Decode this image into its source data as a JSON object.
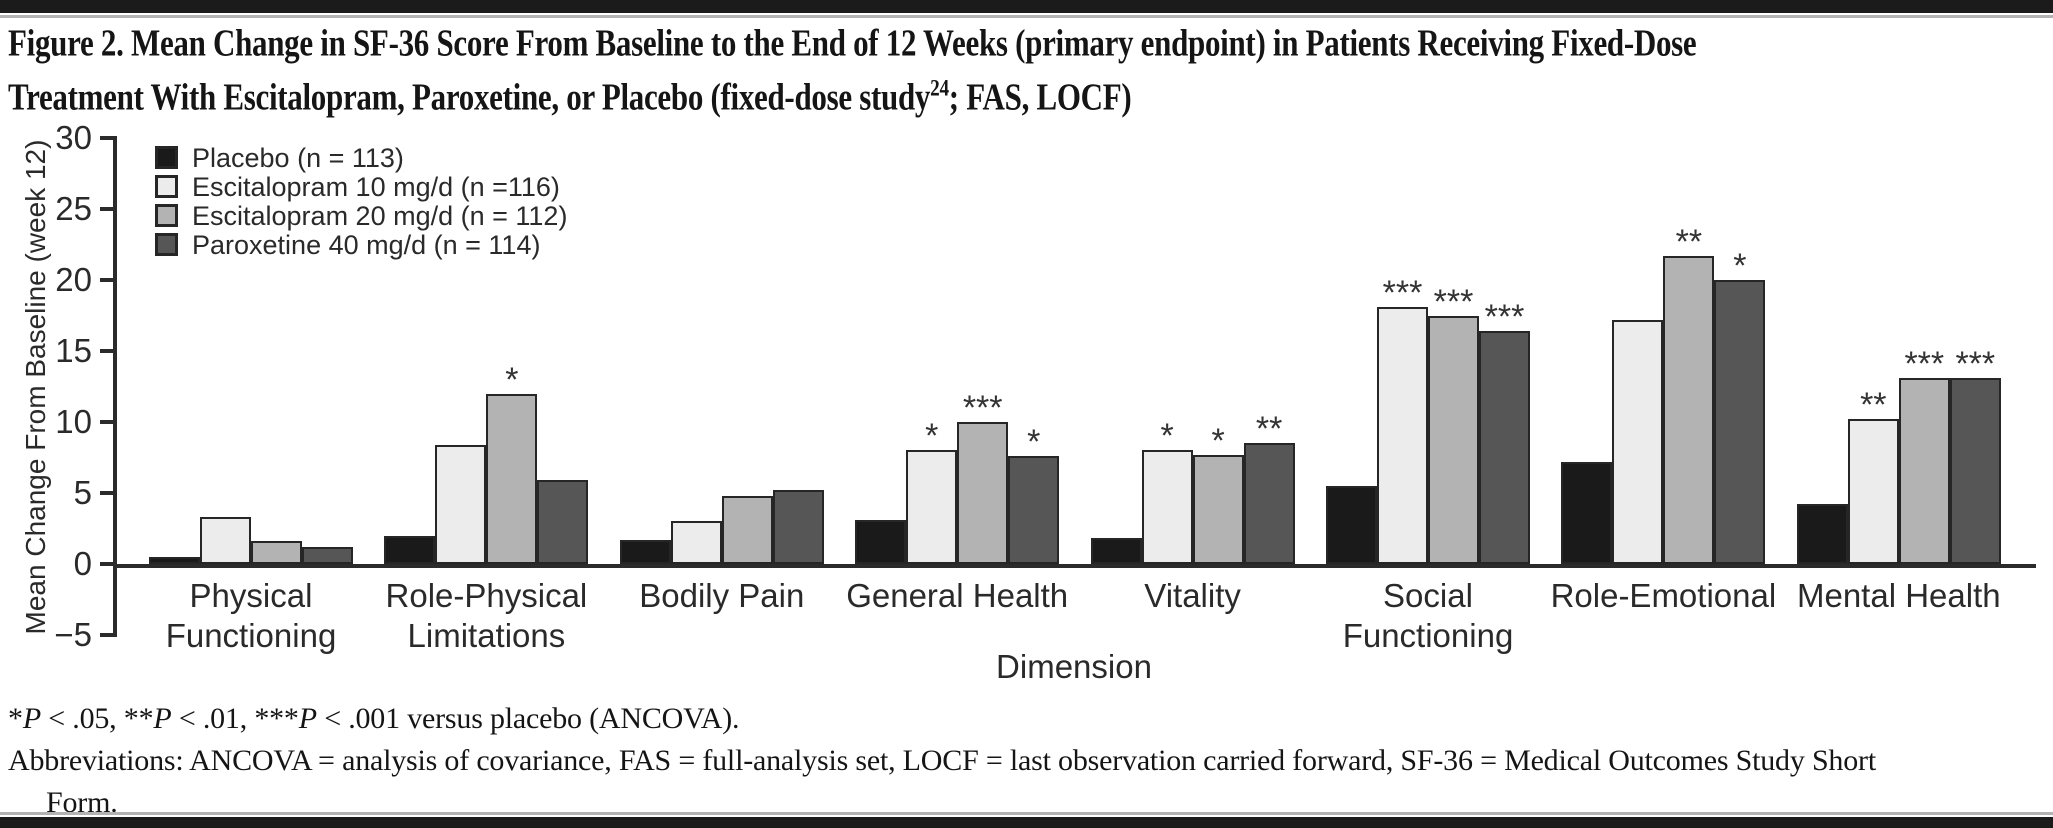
{
  "page": {
    "title_line1": "Figure 2. Mean Change in SF-36 Score From Baseline to the End of 12 Weeks (primary endpoint) in Patients Receiving Fixed-Dose",
    "title_line2_pre": "Treatment With Escitalopram, Paroxetine, or Placebo (fixed-dose study",
    "title_line2_sup": "24",
    "title_line2_post": "; FAS, LOCF)"
  },
  "chart_data": {
    "type": "bar",
    "title": "Figure 2. Mean Change in SF-36 Score From Baseline to the End of 12 Weeks (primary endpoint) in Patients Receiving Fixed-Dose Treatment With Escitalopram, Paroxetine, or Placebo (fixed-dose study24; FAS, LOCF)",
    "xlabel": "Dimension",
    "ylabel": "Mean Change From Baseline (week 12)",
    "ylim": [
      -5,
      30
    ],
    "yticks": [
      30,
      25,
      20,
      15,
      10,
      5,
      0,
      -5
    ],
    "grid": false,
    "legend_position": "top-left",
    "categories": [
      "Physical Functioning",
      "Role-Physical Limitations",
      "Bodily Pain",
      "General Health",
      "Vitality",
      "Social Functioning",
      "Role-Emotional",
      "Mental Health"
    ],
    "category_labels": [
      [
        "Physical",
        "Functioning"
      ],
      [
        "Role-Physical",
        "Limitations"
      ],
      [
        "Bodily Pain"
      ],
      [
        "General Health"
      ],
      [
        "Vitality"
      ],
      [
        "Social",
        "Functioning"
      ],
      [
        "Role-Emotional"
      ],
      [
        "Mental Health"
      ]
    ],
    "series": [
      {
        "name": "Placebo (n = 113)",
        "color": "#1a1a1a",
        "values": [
          0.5,
          2.0,
          1.7,
          3.1,
          1.8,
          5.5,
          7.2,
          4.2
        ],
        "sig": [
          null,
          null,
          null,
          null,
          null,
          null,
          null,
          null
        ]
      },
      {
        "name": "Escitalopram 10 mg/d (n =116)",
        "color": "#ececec",
        "values": [
          3.3,
          8.4,
          3.0,
          8.0,
          8.0,
          18.1,
          17.2,
          10.2
        ],
        "sig": [
          null,
          null,
          null,
          "*",
          "*",
          "***",
          null,
          "**"
        ]
      },
      {
        "name": "Escitalopram 20 mg/d (n = 112)",
        "color": "#b3b3b3",
        "values": [
          1.6,
          12.0,
          4.8,
          10.0,
          7.7,
          17.5,
          21.7,
          13.1
        ],
        "sig": [
          null,
          "*",
          null,
          "***",
          "*",
          "***",
          "**",
          "***"
        ]
      },
      {
        "name": "Paroxetine 40 mg/d (n = 114)",
        "color": "#565656",
        "values": [
          1.2,
          5.9,
          5.2,
          7.6,
          8.5,
          16.4,
          20.0,
          13.1
        ],
        "sig": [
          null,
          null,
          null,
          "*",
          "**",
          "***",
          "*",
          "***"
        ]
      }
    ]
  },
  "footnotes": {
    "significance_parts": [
      {
        "text": "*"
      },
      {
        "text": "P",
        "italic": true
      },
      {
        "text": " < .05, **"
      },
      {
        "text": "P",
        "italic": true
      },
      {
        "text": " < .01, ***"
      },
      {
        "text": "P",
        "italic": true
      },
      {
        "text": " < .001 versus placebo (ANCOVA)."
      }
    ],
    "abbreviations_line1": "Abbreviations: ANCOVA = analysis of covariance, FAS = full-analysis set, LOCF = last observation carried forward, SF-36 = Medical Outcomes Study Short",
    "abbreviations_line2": "Form."
  }
}
